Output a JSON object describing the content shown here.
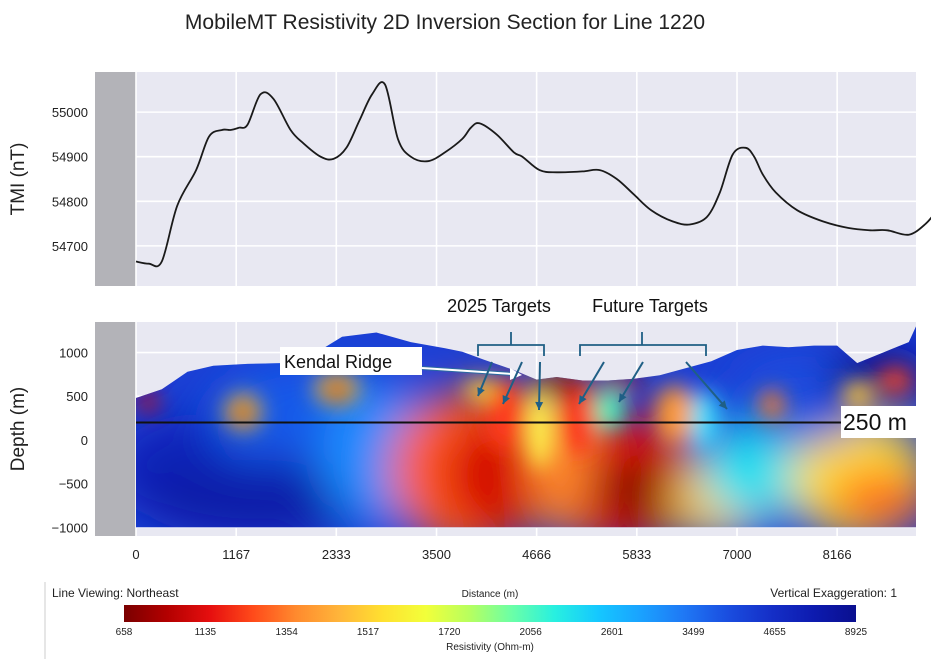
{
  "chart_data": [
    {
      "type": "line",
      "title": "MobileMT Resistivity 2D Inversion Section for Line 1220",
      "ylabel": "TMI (nT)",
      "xlim": [
        0,
        10000
      ],
      "ylim": [
        54610,
        55090
      ],
      "yticks": [
        54700,
        54800,
        54900,
        55000
      ],
      "x": [
        0,
        150,
        300,
        480,
        700,
        850,
        1000,
        1100,
        1200,
        1300,
        1450,
        1600,
        1800,
        1950,
        2150,
        2300,
        2450,
        2600,
        2750,
        2900,
        3050,
        3200,
        3400,
        3600,
        3800,
        3900,
        4000,
        4200,
        4400,
        4500,
        4700,
        4900,
        5200,
        5400,
        5600,
        5800,
        6000,
        6250,
        6450,
        6650,
        6800,
        6950,
        7100,
        7200,
        7300,
        7450,
        7700,
        8000,
        8300,
        8550,
        8750,
        9000,
        9200,
        9350
      ],
      "y": [
        54665,
        54660,
        54665,
        54790,
        54870,
        54945,
        54960,
        54960,
        54965,
        54972,
        55040,
        55030,
        54960,
        54930,
        54900,
        54895,
        54920,
        54980,
        55040,
        55062,
        54940,
        54900,
        54890,
        54910,
        54940,
        54965,
        54975,
        54950,
        54910,
        54900,
        54870,
        54865,
        54867,
        54870,
        54850,
        54815,
        54780,
        54755,
        54748,
        54765,
        54820,
        54905,
        54920,
        54900,
        54860,
        54820,
        54780,
        54755,
        54740,
        54735,
        54735,
        54725,
        54750,
        54785
      ]
    },
    {
      "type": "heatmap",
      "ylabel": "Depth (m)",
      "xlabel": "Distance (m)",
      "xticks": [
        0,
        1167,
        2333,
        3500,
        4666,
        5833,
        7000,
        8166
      ],
      "ylim": [
        -1100,
        1350
      ],
      "yticks": [
        1000,
        500,
        0,
        -500,
        -1000
      ],
      "surface_x": [
        0,
        300,
        600,
        900,
        1300,
        1700,
        2100,
        2400,
        2800,
        3200,
        3600,
        3800,
        4050,
        4400,
        4666,
        4900,
        5200,
        5500,
        5800,
        6100,
        6400,
        6700,
        7000,
        7300,
        7600,
        7900,
        8166,
        8400,
        8700,
        9000,
        9350
      ],
      "surface_y": [
        480,
        580,
        780,
        850,
        870,
        880,
        1000,
        1180,
        1230,
        1120,
        1050,
        1010,
        920,
        800,
        690,
        720,
        680,
        680,
        700,
        740,
        820,
        900,
        1030,
        1080,
        1060,
        1080,
        1080,
        880,
        1000,
        1120,
        1300
      ],
      "bottom_depth": -1000,
      "reference_line_depth": 200,
      "reference_line_label": "250 m",
      "annotations": [
        "Kendal Ridge",
        "2025 Targets",
        "Future Targets"
      ]
    }
  ],
  "colorbar": {
    "left_label": "Line Viewing: Northeast",
    "center_label": "Distance (m)",
    "right_label": "Vertical Exaggeration: 1",
    "title": "Resistivity (Ohm-m)",
    "ticks": [
      "658",
      "1135",
      "1354",
      "1517",
      "1720",
      "2056",
      "2601",
      "3499",
      "4655",
      "8925"
    ],
    "colors": [
      "#7a0000",
      "#b30000",
      "#e60f0f",
      "#ff4a1a",
      "#ff8a2e",
      "#ffb53a",
      "#ffe030",
      "#f2ff3a",
      "#b8ff5e",
      "#6cffa6",
      "#28f0e0",
      "#15c8ff",
      "#1aa2ff",
      "#1f78f5",
      "#1a4ee0",
      "#1530c8",
      "#0d1bb0",
      "#0a0f8f"
    ]
  },
  "colors": {
    "plot_bg": "#e8e8f2",
    "grid": "#ffffff",
    "pad": "#b3b3b8",
    "line": "#1a1a1a",
    "arrow": "#1f5f85"
  }
}
